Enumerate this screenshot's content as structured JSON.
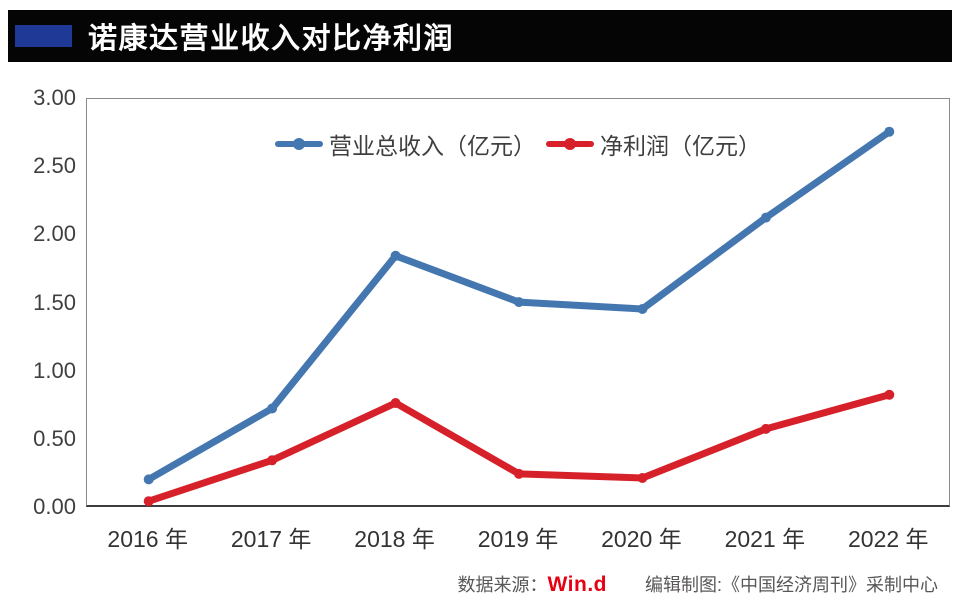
{
  "header": {
    "title": "诺康达营业收入对比净利润"
  },
  "chart_data": {
    "type": "line",
    "title": "诺康达营业收入对比净利润",
    "categories": [
      "2016 年",
      "2017 年",
      "2018 年",
      "2019 年",
      "2020 年",
      "2021 年",
      "2022 年"
    ],
    "series": [
      {
        "name": "营业总收入（亿元）",
        "color": "#4477b0",
        "values": [
          0.21,
          0.73,
          1.85,
          1.51,
          1.46,
          2.13,
          2.76
        ]
      },
      {
        "name": "净利润（亿元）",
        "color": "#d7212a",
        "values": [
          0.05,
          0.35,
          0.77,
          0.25,
          0.22,
          0.58,
          0.83
        ]
      }
    ],
    "ylim": [
      0,
      3
    ],
    "yticks": [
      "3.00",
      "2.50",
      "2.00",
      "1.50",
      "1.00",
      "0.50",
      "0.00"
    ],
    "grid": false,
    "legend_position": "top-center",
    "marker": "circle",
    "line_width": 7
  },
  "footer": {
    "source_label": "数据来源：",
    "source_value": "Win.d",
    "credit": "编辑制图:《中国经济周刊》采制中心"
  },
  "colors": {
    "titlebar_bg": "#050505",
    "title_accent": "#1e3a96",
    "revenue_line": "#4477b0",
    "profit_line": "#d7212a",
    "wind_red": "#e60012",
    "footer_gray": "#595757"
  }
}
